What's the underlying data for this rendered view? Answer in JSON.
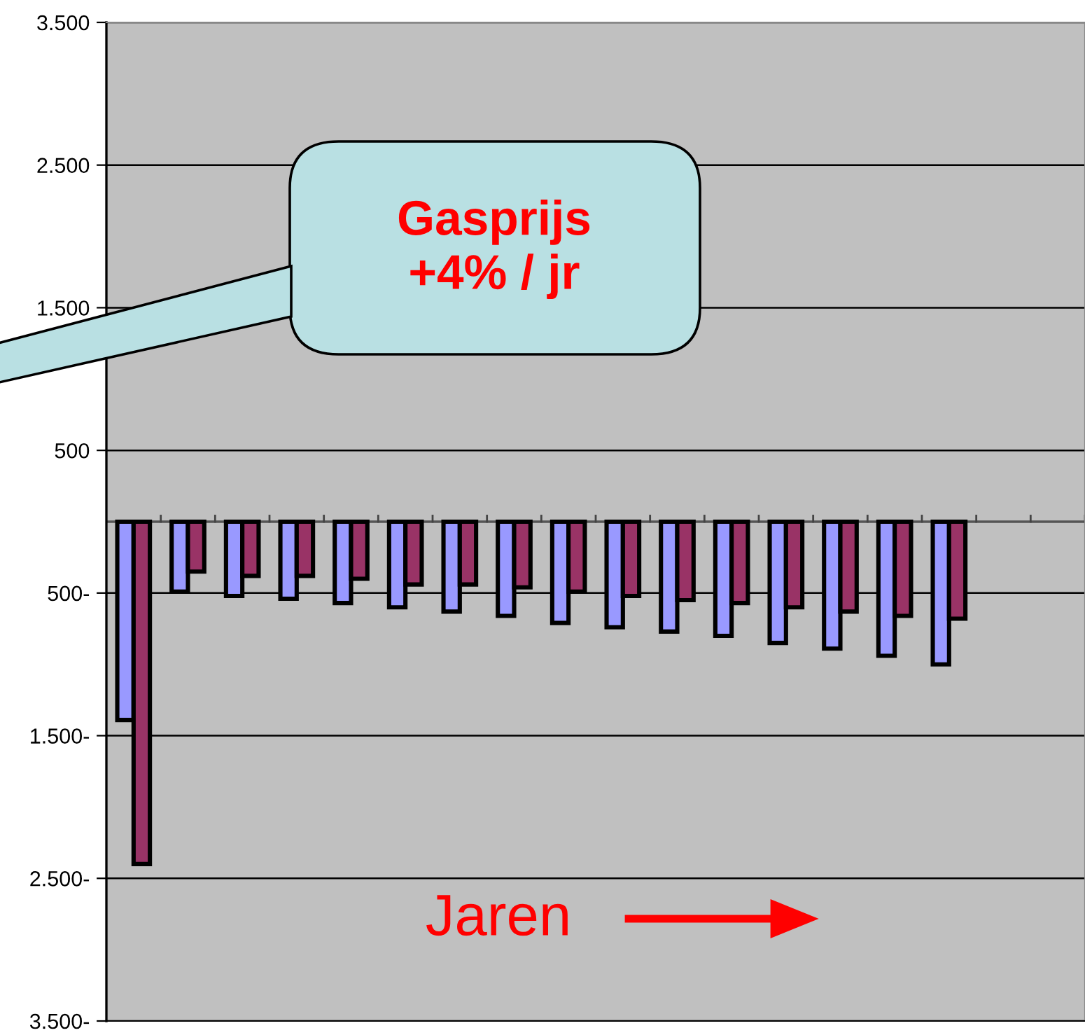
{
  "chart_data": {
    "type": "bar",
    "categories": [
      null,
      null,
      null,
      null,
      null,
      null,
      null,
      null,
      null,
      null,
      null,
      null,
      null,
      null,
      null,
      null,
      null,
      null
    ],
    "series": [
      {
        "color": "#9999ff",
        "values": [
          -1390,
          -490,
          -520,
          -540,
          -570,
          -600,
          -630,
          -660,
          -710,
          -740,
          -770,
          -800,
          -850,
          -890,
          -940,
          -1000,
          null,
          null
        ]
      },
      {
        "color": "#993366",
        "values": [
          -2400,
          -350,
          -380,
          -380,
          -400,
          -440,
          -440,
          -460,
          -490,
          -520,
          -550,
          -570,
          -600,
          -630,
          -660,
          -680,
          null,
          null
        ]
      }
    ],
    "ylim": [
      -3500,
      3500
    ],
    "yticks": [
      {
        "value": -3500,
        "label": "3.500-"
      },
      {
        "value": -2500,
        "label": "2.500-"
      },
      {
        "value": -1500,
        "label": "1.500-"
      },
      {
        "value": -500,
        "label": "500-"
      },
      500,
      {
        "value": 1500,
        "label": "1.500"
      },
      {
        "value": 2500,
        "label": "2.500"
      },
      {
        "value": 3500,
        "label": "3.500"
      }
    ],
    "grid": "y",
    "legend": false,
    "annotations": [
      "Gasprijs\n+4% / jr",
      "Jaren"
    ]
  }
}
